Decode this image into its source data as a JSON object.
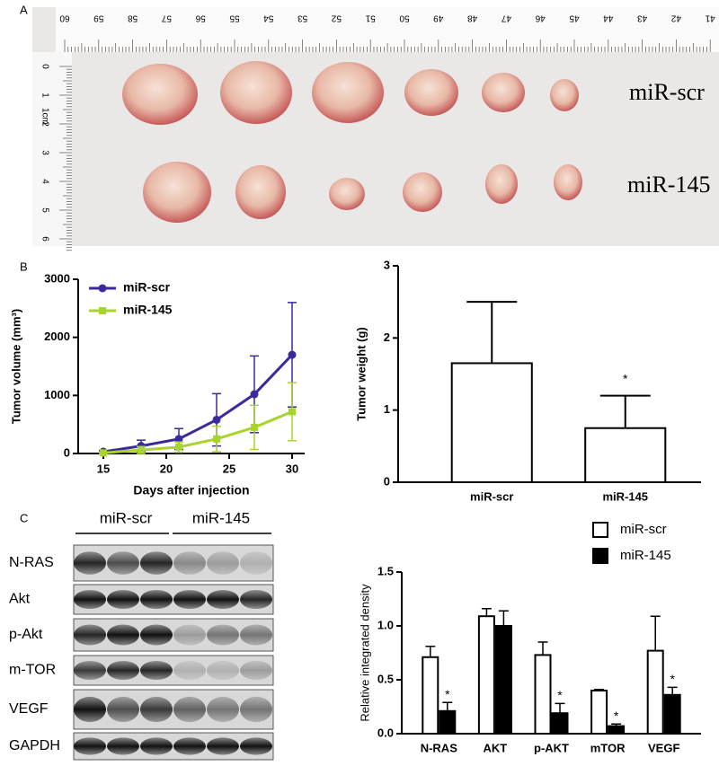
{
  "panels": [
    "A",
    "B",
    "C"
  ],
  "photo": {
    "ruler_top": [
      "60",
      "59",
      "58",
      "57",
      "56",
      "55",
      "54",
      "53",
      "52",
      "51",
      "50",
      "49",
      "48",
      "47",
      "46",
      "45",
      "44",
      "43",
      "42",
      "41"
    ],
    "ruler_left": [
      "0",
      "1",
      "2",
      "3",
      "4",
      "5",
      "6"
    ],
    "ruler_unit": "1cm",
    "row_labels": [
      "miR-scr",
      "miR-145"
    ]
  },
  "blot": {
    "groups": [
      "miR-scr",
      "miR-145"
    ],
    "proteins": [
      "N-RAS",
      "Akt",
      "p-Akt",
      "m-TOR",
      "VEGF",
      "GAPDH"
    ]
  },
  "chart_data": [
    {
      "type": "line",
      "xlabel": "Days after injection",
      "ylabel": "Tumor volume (mm³)",
      "x": [
        15,
        18,
        21,
        24,
        27,
        30
      ],
      "xlim": [
        13,
        31
      ],
      "xticks": [
        15,
        20,
        25,
        30
      ],
      "ylim": [
        0,
        3000
      ],
      "yticks": [
        0,
        1000,
        2000,
        3000
      ],
      "series": [
        {
          "name": "miR-scr",
          "color": "#3a2a9e",
          "marker": "circle",
          "values": [
            30,
            130,
            250,
            580,
            1020,
            1700
          ],
          "errors": [
            20,
            100,
            180,
            450,
            660,
            900
          ]
        },
        {
          "name": "miR-145",
          "color": "#a8d42c",
          "marker": "square",
          "values": [
            10,
            60,
            110,
            250,
            450,
            720
          ],
          "errors": [
            10,
            60,
            90,
            220,
            380,
            500
          ]
        }
      ]
    },
    {
      "type": "bar",
      "ylabel": "Tumor weight (g)",
      "categories": [
        "miR-scr",
        "miR-145"
      ],
      "values": [
        1.65,
        0.75
      ],
      "errors": [
        0.85,
        0.45
      ],
      "annotations": [
        null,
        "*"
      ],
      "color": "#ffffff",
      "ylim": [
        0,
        3
      ],
      "yticks": [
        0,
        1,
        2,
        3
      ]
    },
    {
      "type": "grouped-bar",
      "ylabel": "Relative integrated density",
      "categories": [
        "N-RAS",
        "AKT",
        "p-AKT",
        "mTOR",
        "VEGF"
      ],
      "ylim": [
        0,
        1.5
      ],
      "yticks": [
        {
          "value": 0,
          "label": "0.0"
        },
        {
          "value": 0.5,
          "label": "0.5"
        },
        {
          "value": 1,
          "label": "1.0"
        },
        {
          "value": 1.5,
          "label": "1.5"
        }
      ],
      "series": [
        {
          "name": "miR-scr",
          "color": "#ffffff",
          "values": [
            0.71,
            1.09,
            0.73,
            0.4,
            0.77
          ],
          "errors": [
            0.1,
            0.07,
            0.12,
            0.01,
            0.32
          ],
          "annotations": [
            null,
            null,
            null,
            null,
            null
          ]
        },
        {
          "name": "miR-145",
          "color": "#000000",
          "values": [
            0.21,
            1.0,
            0.19,
            0.07,
            0.36
          ],
          "errors": [
            0.08,
            0.14,
            0.09,
            0.02,
            0.07
          ],
          "annotations": [
            "*",
            null,
            "*",
            "*",
            "*"
          ]
        }
      ]
    }
  ]
}
